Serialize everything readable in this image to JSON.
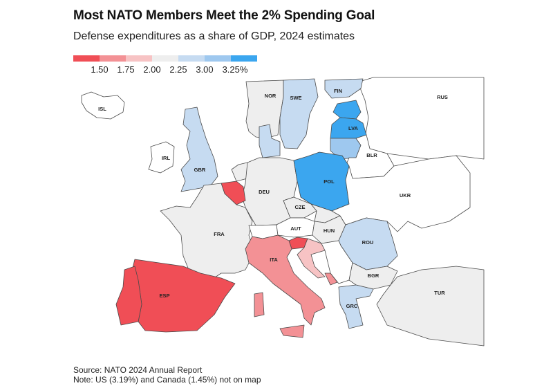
{
  "title": "Most NATO Members Meet the 2% Spending Goal",
  "subtitle": "Defense expenditures as a share of GDP, 2024 estimates",
  "legend": {
    "colors": [
      "#f04e56",
      "#f39195",
      "#f7c3c4",
      "#eeeeee",
      "#c6dbf1",
      "#9ec8ef",
      "#3ba6ef"
    ],
    "ticks": [
      "1.50",
      "1.75",
      "2.00",
      "2.25",
      "3.00",
      "3.25%"
    ]
  },
  "countries": {
    "ISL": {
      "label": "ISL",
      "bin": -1
    },
    "NOR": {
      "label": "NOR",
      "bin": 3
    },
    "SWE": {
      "label": "SWE",
      "bin": 4
    },
    "FIN": {
      "label": "FIN",
      "bin": 4
    },
    "EST": {
      "bin": 6
    },
    "LVA": {
      "label": "LVA",
      "bin": 6
    },
    "LTU": {
      "bin": 5
    },
    "BLR": {
      "label": "BLR",
      "bin": -1
    },
    "RUS": {
      "label": "RUS",
      "bin": -1
    },
    "IRL": {
      "label": "IRL",
      "bin": -1
    },
    "GBR": {
      "label": "GBR",
      "bin": 4
    },
    "DNK": {
      "bin": 4
    },
    "POL": {
      "label": "POL",
      "bin": 6
    },
    "BEL": {
      "bin": 0
    },
    "NLD": {
      "bin": 3
    },
    "DEU": {
      "label": "DEU",
      "bin": 3
    },
    "FRA": {
      "label": "FRA",
      "bin": 3
    },
    "CZE": {
      "label": "CZE",
      "bin": 3
    },
    "AUT": {
      "label": "AUT",
      "bin": -1
    },
    "HUN": {
      "label": "HUN",
      "bin": 3
    },
    "SVK": {
      "bin": 3
    },
    "UKR": {
      "label": "UKR",
      "bin": -1
    },
    "ROU": {
      "label": "ROU",
      "bin": 4
    },
    "ITA": {
      "label": "ITA",
      "bin": 1
    },
    "SVN": {
      "bin": 0
    },
    "HRV": {
      "bin": 2
    },
    "MNE": {
      "bin": 1
    },
    "SRB": {
      "bin": -1
    },
    "BGR": {
      "label": "BGR",
      "bin": 3
    },
    "GRC": {
      "label": "GRC",
      "bin": 4
    },
    "TUR": {
      "label": "TUR",
      "bin": 3
    },
    "ESP": {
      "label": "ESP",
      "bin": 0
    },
    "PRT": {
      "bin": 0
    },
    "CHE": {
      "bin": -1
    }
  },
  "footer": {
    "source": "Source: NATO 2024 Annual Report",
    "note": "Note: US (3.19%) and Canada (1.45%) not on map"
  }
}
